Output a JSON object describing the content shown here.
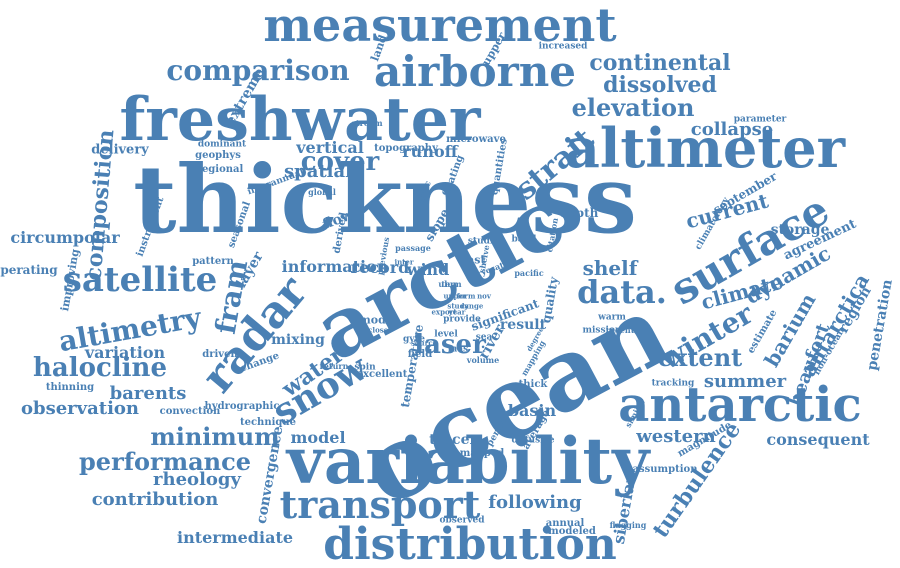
{
  "color": "#4a80b4",
  "words": [
    {
      "t": "thickness",
      "r": 0
    },
    {
      "t": "ocean",
      "r": -28
    },
    {
      "t": "arctic",
      "r": -28
    },
    {
      "t": "variability",
      "r": 0
    },
    {
      "t": "freshwater",
      "r": 0
    },
    {
      "t": "altimeter",
      "r": 0
    },
    {
      "t": "measurement",
      "r": 0
    },
    {
      "t": "airborne",
      "r": 0
    },
    {
      "t": "antarctic",
      "r": 0
    },
    {
      "t": "distribution",
      "r": 0
    },
    {
      "t": "radar",
      "r": -50
    },
    {
      "t": "surface",
      "r": -30
    },
    {
      "t": "transport",
      "r": 0
    },
    {
      "t": "satellite",
      "r": 0
    },
    {
      "t": "snow",
      "r": -30
    },
    {
      "t": "strait",
      "r": -40
    },
    {
      "t": "data.",
      "r": 0
    },
    {
      "t": "comparison",
      "r": 0
    },
    {
      "t": "altimetry",
      "r": -10
    },
    {
      "t": "laser",
      "r": 0
    },
    {
      "t": "halocline",
      "r": 0
    },
    {
      "t": "minimum",
      "r": 0
    },
    {
      "t": "performance",
      "r": 0
    },
    {
      "t": "fram",
      "r": -80
    },
    {
      "t": "winter",
      "r": -30
    },
    {
      "t": "water",
      "r": -35
    },
    {
      "t": "elevation",
      "r": 0
    },
    {
      "t": "cover",
      "r": 0
    },
    {
      "t": "extent",
      "r": 0
    },
    {
      "t": "continental",
      "r": 0
    },
    {
      "t": "dissolved",
      "r": 0
    },
    {
      "t": "antarctica",
      "r": -60
    },
    {
      "t": "composition",
      "r": -85
    },
    {
      "t": "barium",
      "r": -60
    },
    {
      "t": "shelf",
      "r": 0
    },
    {
      "t": "current",
      "r": -15
    },
    {
      "t": "climate",
      "r": -15
    },
    {
      "t": "dynamic",
      "r": -30
    },
    {
      "t": "beaufort",
      "r": -70
    },
    {
      "t": "western",
      "r": 0
    },
    {
      "t": "following",
      "r": 0
    },
    {
      "t": "turbulence",
      "r": -55
    },
    {
      "t": "observation",
      "r": 0
    },
    {
      "t": "contribution",
      "r": 0
    },
    {
      "t": "rheology",
      "r": 0
    },
    {
      "t": "barents",
      "r": 0
    },
    {
      "t": "summer",
      "r": 0
    },
    {
      "t": "consequent",
      "r": 0
    },
    {
      "t": "model",
      "r": 0
    },
    {
      "t": "basin",
      "r": 0
    },
    {
      "t": "collapse",
      "r": 0
    },
    {
      "t": "spatial",
      "r": 0
    },
    {
      "t": "vertical",
      "r": 0
    },
    {
      "t": "runoff",
      "r": 0
    },
    {
      "t": "intermediate",
      "r": 0
    },
    {
      "t": "variation",
      "r": 0
    },
    {
      "t": "circumpolar",
      "r": 0
    },
    {
      "t": "convergence",
      "r": -80
    },
    {
      "t": "siberian",
      "r": -80
    },
    {
      "t": "extreme",
      "r": -60
    },
    {
      "t": "information",
      "r": 0
    },
    {
      "t": "record",
      "r": 0
    },
    {
      "t": "wind",
      "r": 0
    },
    {
      "t": "flow",
      "r": -20
    },
    {
      "t": "result",
      "r": 0
    },
    {
      "t": "river",
      "r": -60
    },
    {
      "t": "tracer",
      "r": 0
    },
    {
      "t": "mixing",
      "r": 0
    },
    {
      "t": "layer",
      "r": -60
    },
    {
      "t": "depth",
      "r": 0
    },
    {
      "t": "storage",
      "r": 0
    },
    {
      "t": "region",
      "r": -60
    },
    {
      "t": "agreement",
      "r": -25
    },
    {
      "t": "penetration",
      "r": -80
    },
    {
      "t": "september",
      "r": -30
    },
    {
      "t": "temperature",
      "r": -80
    },
    {
      "t": "significant",
      "r": -20
    },
    {
      "t": "mode",
      "r": 0
    },
    {
      "t": "slope",
      "r": -60
    },
    {
      "t": "quality",
      "r": -80
    },
    {
      "t": "land",
      "r": -70
    },
    {
      "t": "upper",
      "r": -60
    },
    {
      "t": "increased",
      "r": 0
    },
    {
      "t": "microwave",
      "r": 0
    },
    {
      "t": "topography",
      "r": 0
    },
    {
      "t": "geophys",
      "r": 0
    },
    {
      "t": "regional",
      "r": 0
    },
    {
      "t": "dominant",
      "r": 0
    },
    {
      "t": "delivery",
      "r": 0
    },
    {
      "t": "operating",
      "r": 0
    },
    {
      "t": "improving",
      "r": -80
    },
    {
      "t": "instrument",
      "r": -70
    },
    {
      "t": "seasonal",
      "r": -70
    },
    {
      "t": "derived",
      "r": -80
    },
    {
      "t": "previous",
      "r": -80
    },
    {
      "t": "pattern",
      "r": 0
    },
    {
      "t": "driven",
      "r": 0
    },
    {
      "t": "thinning",
      "r": 0
    },
    {
      "t": "convection",
      "r": 0
    },
    {
      "t": "hydrographic",
      "r": 0
    },
    {
      "t": "technique",
      "r": 0
    },
    {
      "t": "change",
      "r": -20
    },
    {
      "t": "mapped",
      "r": 0
    },
    {
      "t": "period",
      "r": -60
    },
    {
      "t": "diffusive",
      "r": 0
    },
    {
      "t": "excellent",
      "r": 0
    },
    {
      "t": "observed",
      "r": 0
    },
    {
      "t": "annual",
      "r": 0
    },
    {
      "t": "modeled",
      "r": 0
    },
    {
      "t": "flagging",
      "r": 0
    },
    {
      "t": "assumption",
      "r": 0
    },
    {
      "t": "magnitude",
      "r": -30
    },
    {
      "t": "estimate",
      "r": -60
    },
    {
      "t": "non-ocean",
      "r": -60
    },
    {
      "t": "tracking",
      "r": 0
    },
    {
      "t": "climatology",
      "r": -60
    },
    {
      "t": "parameter",
      "r": 0
    },
    {
      "t": "quantities",
      "r": -80
    },
    {
      "t": "interannual",
      "r": -20
    },
    {
      "t": "global",
      "r": 0
    },
    {
      "t": "floating",
      "r": -70
    },
    {
      "t": "atlantic",
      "r": -70
    },
    {
      "t": "studies",
      "r": 0
    },
    {
      "t": "band",
      "r": 0
    },
    {
      "t": "citation",
      "r": -80
    },
    {
      "t": "shelve",
      "r": -80
    },
    {
      "t": "cryosat",
      "r": -20
    },
    {
      "t": "pacific",
      "r": 0
    },
    {
      "t": "warm",
      "r": 0
    },
    {
      "t": "recent",
      "r": 0
    },
    {
      "t": "mission",
      "r": 0
    },
    {
      "t": "provide",
      "r": 0
    },
    {
      "t": "level",
      "r": 0
    },
    {
      "t": "mas",
      "r": 0
    },
    {
      "t": "sea",
      "r": 0
    },
    {
      "t": "fast",
      "r": 0
    },
    {
      "t": "gyre",
      "r": 0
    },
    {
      "t": "field",
      "r": 0
    },
    {
      "t": "spin",
      "r": 0
    },
    {
      "t": "return",
      "r": 0
    },
    {
      "t": "volume",
      "r": 0
    },
    {
      "t": "thick",
      "r": 0
    },
    {
      "t": "average",
      "r": -60
    },
    {
      "t": "similar",
      "r": -60
    },
    {
      "t": "mapping",
      "r": -60
    },
    {
      "t": "stream",
      "r": 0
    },
    {
      "t": "passage",
      "r": 0
    },
    {
      "t": "degree",
      "r": -60
    },
    {
      "t": "source",
      "r": 0
    },
    {
      "t": "export",
      "r": 0
    },
    {
      "t": "year",
      "r": 0
    },
    {
      "t": "study",
      "r": 0
    },
    {
      "t": "inter",
      "r": 0
    },
    {
      "t": "closer",
      "r": 0
    },
    {
      "t": "upper",
      "r": 0
    },
    {
      "t": "range",
      "r": 0
    },
    {
      "t": "form",
      "r": 0
    },
    {
      "t": "nov",
      "r": 0
    },
    {
      "t": "tem",
      "r": 0
    },
    {
      "t": "ulum",
      "r": 0
    }
  ]
}
